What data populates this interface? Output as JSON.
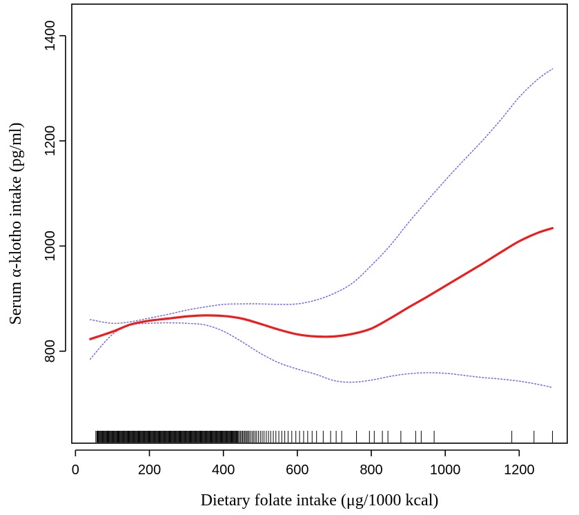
{
  "chart_data": {
    "type": "line",
    "title": "",
    "xlabel": "Dietary folate intake (μg/1000 kcal)",
    "ylabel": "Serum α-klotho intake (pg/ml)",
    "xlim": [
      -10,
      1330
    ],
    "ylim": [
      625,
      1460
    ],
    "x_ticks": [
      0,
      200,
      400,
      600,
      800,
      1000,
      1200
    ],
    "y_ticks": [
      800,
      1000,
      1200,
      1400
    ],
    "grid": false,
    "legend": "none",
    "colors": {
      "fit": "#ee1c1c",
      "ci": "#6f6ff0",
      "rug": "#000000",
      "axis": "#000000"
    },
    "series": [
      {
        "role": "fit",
        "style": "solid",
        "x": [
          40,
          100,
          150,
          200,
          250,
          300,
          350,
          400,
          450,
          500,
          550,
          600,
          650,
          700,
          750,
          800,
          850,
          900,
          950,
          1000,
          1050,
          1100,
          1150,
          1200,
          1250,
          1290
        ],
        "y": [
          823,
          837,
          851,
          858,
          862,
          866,
          868,
          867,
          862,
          852,
          841,
          832,
          828,
          828,
          833,
          843,
          862,
          883,
          903,
          924,
          945,
          966,
          988,
          1009,
          1025,
          1034
        ]
      },
      {
        "role": "upper-ci",
        "style": "dotted",
        "x": [
          40,
          100,
          150,
          200,
          250,
          300,
          350,
          400,
          450,
          500,
          550,
          600,
          650,
          700,
          750,
          800,
          850,
          900,
          950,
          1000,
          1050,
          1100,
          1150,
          1200,
          1250,
          1290
        ],
        "y": [
          860,
          853,
          856,
          863,
          870,
          878,
          884,
          889,
          890,
          890,
          889,
          890,
          897,
          910,
          930,
          963,
          1000,
          1044,
          1085,
          1125,
          1163,
          1200,
          1240,
          1283,
          1317,
          1337
        ]
      },
      {
        "role": "lower-ci",
        "style": "dotted",
        "x": [
          40,
          100,
          150,
          200,
          250,
          300,
          350,
          400,
          450,
          500,
          550,
          600,
          650,
          700,
          750,
          800,
          850,
          900,
          950,
          1000,
          1050,
          1100,
          1150,
          1200,
          1250,
          1290
        ],
        "y": [
          785,
          832,
          850,
          853,
          854,
          853,
          850,
          838,
          818,
          796,
          778,
          766,
          756,
          744,
          741,
          745,
          752,
          757,
          759,
          758,
          754,
          750,
          747,
          743,
          737,
          731
        ]
      }
    ],
    "rug": [
      55,
      58,
      60,
      62,
      64,
      66,
      68,
      70,
      72,
      74,
      76,
      78,
      80,
      82,
      84,
      86,
      88,
      90,
      92,
      94,
      96,
      98,
      100,
      102,
      104,
      106,
      108,
      110,
      112,
      114,
      116,
      118,
      120,
      122,
      124,
      126,
      128,
      130,
      132,
      134,
      136,
      138,
      140,
      142,
      144,
      146,
      148,
      150,
      152,
      154,
      156,
      158,
      160,
      162,
      164,
      166,
      168,
      170,
      172,
      174,
      176,
      178,
      180,
      182,
      184,
      186,
      188,
      190,
      192,
      194,
      196,
      198,
      200,
      202,
      204,
      206,
      208,
      210,
      212,
      214,
      216,
      218,
      220,
      222,
      224,
      226,
      228,
      230,
      232,
      234,
      236,
      238,
      240,
      242,
      244,
      246,
      248,
      250,
      252,
      254,
      256,
      258,
      260,
      262,
      264,
      266,
      268,
      270,
      272,
      274,
      276,
      278,
      280,
      282,
      284,
      286,
      288,
      290,
      292,
      294,
      296,
      298,
      300,
      302,
      304,
      306,
      308,
      310,
      312,
      314,
      316,
      318,
      320,
      322,
      324,
      326,
      328,
      330,
      332,
      334,
      336,
      338,
      340,
      342,
      344,
      346,
      348,
      350,
      352,
      354,
      356,
      358,
      360,
      362,
      364,
      366,
      368,
      370,
      372,
      374,
      376,
      378,
      380,
      382,
      384,
      386,
      388,
      390,
      392,
      394,
      396,
      398,
      400,
      402,
      404,
      406,
      408,
      410,
      412,
      414,
      416,
      418,
      420,
      422,
      424,
      426,
      428,
      430,
      432,
      434,
      436,
      438,
      440,
      443,
      446,
      449,
      452,
      455,
      458,
      461,
      464,
      467,
      470,
      474,
      478,
      482,
      486,
      490,
      495,
      500,
      505,
      510,
      516,
      522,
      528,
      535,
      542,
      550,
      558,
      566,
      575,
      585,
      596,
      606,
      617,
      628,
      640,
      652,
      670,
      690,
      705,
      720,
      760,
      795,
      808,
      830,
      845,
      880,
      920,
      935,
      970,
      1180,
      1240,
      1290
    ]
  }
}
